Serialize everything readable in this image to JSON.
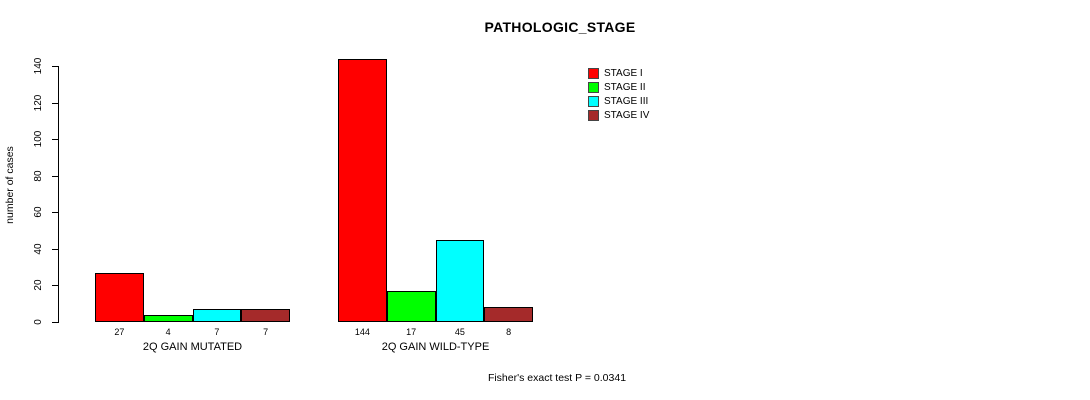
{
  "chart_data": {
    "type": "bar",
    "title": "PATHOLOGIC_STAGE",
    "xlabel": "",
    "ylabel": "number of cases",
    "ylim": [
      0,
      140
    ],
    "yticks": [
      0,
      20,
      40,
      60,
      80,
      100,
      120,
      140
    ],
    "categories": [
      "2Q GAIN MUTATED",
      "2Q GAIN WILD-TYPE"
    ],
    "series": [
      {
        "name": "STAGE I",
        "color": "#FF0000",
        "values": [
          27,
          144
        ]
      },
      {
        "name": "STAGE II",
        "color": "#00FF00",
        "values": [
          4,
          17
        ]
      },
      {
        "name": "STAGE III",
        "color": "#00FFFF",
        "values": [
          7,
          45
        ]
      },
      {
        "name": "STAGE IV",
        "color": "#A52A2A",
        "values": [
          7,
          8
        ]
      }
    ],
    "bar_value_labels": [
      [
        27,
        4,
        7,
        7
      ],
      [
        144,
        17,
        45,
        8
      ]
    ],
    "legend_position": "top-right",
    "grid": false,
    "annotation": "Fisher's exact test P = 0.0341"
  }
}
